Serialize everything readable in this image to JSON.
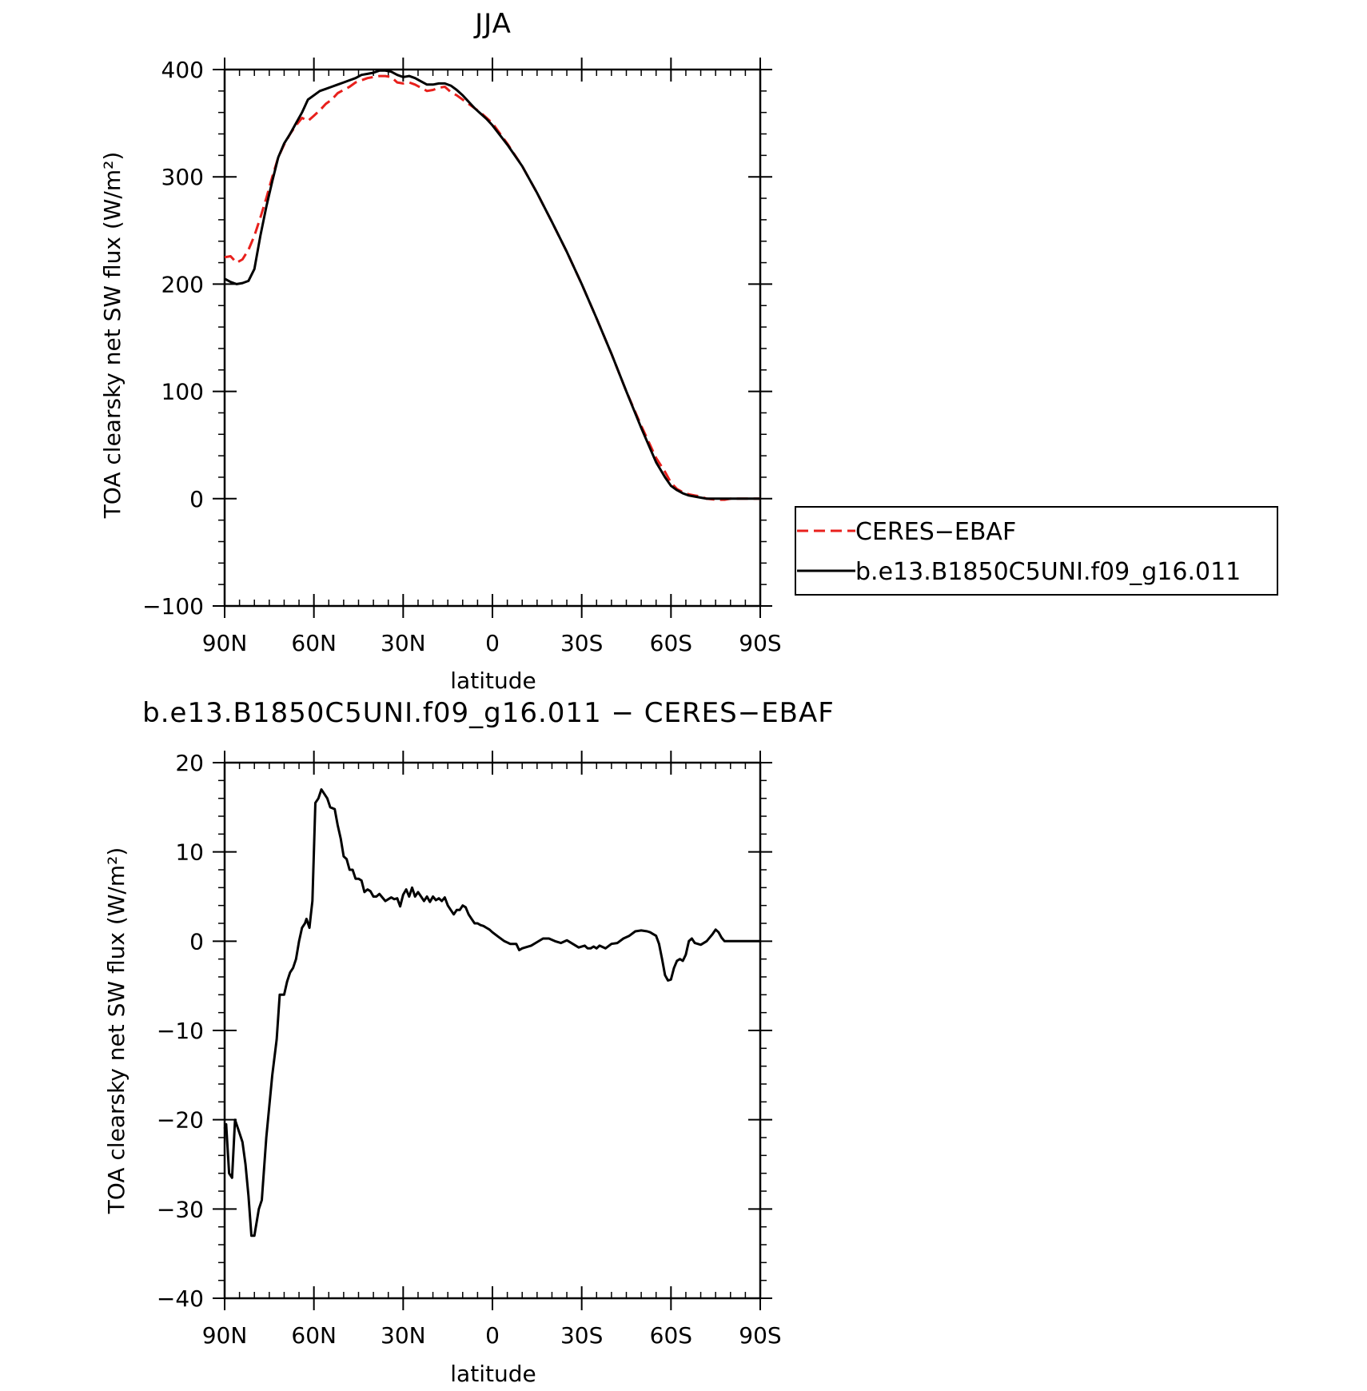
{
  "chart_data": [
    {
      "type": "line",
      "title": "JJA",
      "xlabel": "latitude",
      "ylabel": "TOA clearsky net SW flux (W/m²)",
      "xlim": [
        90,
        -90
      ],
      "ylim": [
        -100,
        400
      ],
      "x_ticks": [
        90,
        60,
        30,
        0,
        -30,
        -60,
        -90
      ],
      "x_tick_labels": [
        "90N",
        "60N",
        "30N",
        "0",
        "30S",
        "60S",
        "90S"
      ],
      "y_ticks": [
        400,
        300,
        200,
        100,
        0,
        -100
      ],
      "y_tick_labels": [
        "400",
        "300",
        "200",
        "100",
        "0",
        "−100"
      ],
      "legend": "outside-right",
      "series": [
        {
          "name": "CERES−EBAF",
          "color": "#e8201c",
          "style": "dashed",
          "x": [
            90,
            88,
            86,
            84,
            82,
            80,
            78,
            76,
            74,
            72,
            70,
            68,
            66,
            64,
            62,
            60,
            58,
            56,
            54,
            52,
            50,
            48,
            46,
            44,
            42,
            40,
            38,
            36,
            34,
            32,
            30,
            28,
            26,
            24,
            22,
            20,
            18,
            16,
            14,
            12,
            10,
            8,
            6,
            4,
            2,
            0,
            -5,
            -10,
            -15,
            -20,
            -25,
            -30,
            -35,
            -40,
            -45,
            -50,
            -55,
            -58,
            -60,
            -62,
            -64,
            -66,
            -68,
            -70,
            -72,
            -75,
            -78,
            -80,
            -85,
            -90
          ],
          "y": [
            225,
            226,
            220,
            223,
            232,
            245,
            262,
            280,
            300,
            318,
            330,
            340,
            348,
            355,
            352,
            357,
            362,
            368,
            372,
            378,
            381,
            384,
            388,
            390,
            392,
            393,
            394,
            394,
            393,
            388,
            387,
            388,
            386,
            383,
            380,
            381,
            383,
            384,
            379,
            376,
            372,
            368,
            364,
            360,
            355,
            350,
            331,
            310,
            285,
            258,
            230,
            200,
            168,
            135,
            100,
            68,
            38,
            25,
            15,
            9,
            6,
            4,
            3,
            2,
            0,
            -1,
            -1,
            0,
            0,
            0
          ]
        },
        {
          "name": "b.e13.B1850C5UNI.f09_g16.011",
          "color": "#000000",
          "style": "solid",
          "x": [
            90,
            88,
            86,
            84,
            82,
            80,
            78,
            76,
            74,
            72,
            70,
            68,
            66,
            64,
            62,
            60,
            58,
            56,
            54,
            52,
            50,
            48,
            46,
            44,
            42,
            40,
            38,
            36,
            34,
            32,
            30,
            28,
            26,
            24,
            22,
            20,
            18,
            16,
            14,
            12,
            10,
            8,
            6,
            4,
            2,
            0,
            -5,
            -10,
            -15,
            -20,
            -25,
            -30,
            -35,
            -40,
            -45,
            -50,
            -55,
            -58,
            -60,
            -62,
            -64,
            -66,
            -68,
            -70,
            -72,
            -75,
            -78,
            -80,
            -85,
            -90
          ],
          "y": [
            205,
            202,
            200,
            201,
            203,
            214,
            245,
            272,
            296,
            318,
            331,
            340,
            350,
            360,
            372,
            376,
            380,
            382,
            384,
            386,
            388,
            390,
            392,
            395,
            396,
            397,
            399,
            399,
            398,
            395,
            393,
            394,
            392,
            389,
            386,
            386,
            387,
            387,
            385,
            381,
            376,
            370,
            364,
            359,
            354,
            348,
            330,
            310,
            285,
            258,
            230,
            200,
            168,
            135,
            100,
            66,
            34,
            20,
            12,
            8,
            5,
            3,
            2,
            1,
            0,
            0,
            0,
            0,
            0,
            0
          ]
        }
      ]
    },
    {
      "type": "line",
      "title": "b.e13.B1850C5UNI.f09_g16.011 − CERES−EBAF",
      "xlabel": "latitude",
      "ylabel": "TOA clearsky net SW flux (W/m²)",
      "xlim": [
        90,
        -90
      ],
      "ylim": [
        -40,
        20
      ],
      "x_ticks": [
        90,
        60,
        30,
        0,
        -30,
        -60,
        -90
      ],
      "x_tick_labels": [
        "90N",
        "60N",
        "30N",
        "0",
        "30S",
        "60S",
        "90S"
      ],
      "y_ticks": [
        20,
        10,
        0,
        -10,
        -20,
        -30,
        -40
      ],
      "y_tick_labels": [
        "20",
        "10",
        "0",
        "−10",
        "−20",
        "−30",
        "−40"
      ],
      "series": [
        {
          "name": "",
          "color": "#000000",
          "style": "solid",
          "x": [
            90,
            89.5,
            88.5,
            87.5,
            86.5,
            85,
            84,
            83,
            82,
            81,
            80,
            78.5,
            77.5,
            76,
            74,
            72.5,
            71.5,
            70,
            69,
            68,
            67,
            66,
            65,
            64,
            63,
            62.5,
            61.5,
            61,
            60.5,
            59.5,
            58.5,
            57.5,
            56.5,
            55.5,
            54.5,
            53,
            52,
            51,
            50,
            49,
            48,
            47,
            46,
            45,
            44,
            43,
            42,
            41,
            40,
            39,
            38,
            37,
            36,
            35,
            34,
            33,
            32,
            31,
            30,
            29,
            28,
            27,
            26,
            25,
            24,
            23,
            22,
            21,
            20,
            19,
            18,
            17,
            16,
            15,
            14,
            13,
            12,
            11,
            10,
            9,
            8,
            7,
            6,
            5,
            4,
            3,
            2,
            1,
            0,
            -2,
            -4,
            -6,
            -8,
            -9,
            -10,
            -11,
            -13,
            -15,
            -17,
            -19,
            -21,
            -23,
            -25,
            -27,
            -29,
            -31,
            -32,
            -33,
            -34,
            -35,
            -36,
            -38,
            -40,
            -42,
            -44,
            -46,
            -48,
            -50,
            -52,
            -53,
            -54,
            -55,
            -56,
            -57,
            -58,
            -59,
            -60,
            -61,
            -62,
            -63,
            -64,
            -65,
            -66,
            -67,
            -68,
            -70,
            -72,
            -74,
            -75,
            -76,
            -77,
            -78,
            -80,
            -85,
            -90
          ],
          "y": [
            -21,
            -20.5,
            -26,
            -26.5,
            -20,
            -21.5,
            -22.5,
            -25,
            -28.5,
            -33,
            -33,
            -30,
            -29,
            -22,
            -15,
            -11,
            -6,
            -6,
            -4.5,
            -3.5,
            -3,
            -2,
            0,
            1.5,
            2,
            2.5,
            1.5,
            3,
            4.5,
            15.5,
            16,
            17,
            16.5,
            16,
            15,
            14.8,
            13,
            11.5,
            9.5,
            9.2,
            8,
            8,
            7,
            7,
            6.8,
            5.5,
            5.8,
            5.6,
            5,
            5,
            5.3,
            4.9,
            4.5,
            4.7,
            4.9,
            4.7,
            4.8,
            3.9,
            5.2,
            5.8,
            5,
            6,
            5,
            5.5,
            5,
            4.5,
            5,
            4.4,
            5,
            4.6,
            4.8,
            4.5,
            4.9,
            4,
            3.5,
            3,
            3.5,
            3.5,
            4,
            3.8,
            3,
            2.5,
            2,
            2,
            1.8,
            1.7,
            1.5,
            1.3,
            1,
            0.5,
            0,
            -0.3,
            -0.3,
            -1.0,
            -0.8,
            -0.7,
            -0.5,
            -0.1,
            0.3,
            0.3,
            0,
            -0.2,
            0.1,
            -0.3,
            -0.7,
            -0.5,
            -0.8,
            -0.8,
            -0.6,
            -0.8,
            -0.5,
            -0.8,
            -0.3,
            -0.2,
            0.3,
            0.6,
            1.1,
            1.2,
            1.1,
            1.0,
            0.8,
            0.6,
            -0.3,
            -2,
            -3.8,
            -4.4,
            -4.3,
            -3,
            -2.2,
            -2.0,
            -2.2,
            -1.5,
            0,
            0.3,
            -0.2,
            -0.4,
            0,
            0.8,
            1.3,
            1,
            0.4,
            0,
            0,
            0,
            0
          ]
        }
      ]
    }
  ]
}
